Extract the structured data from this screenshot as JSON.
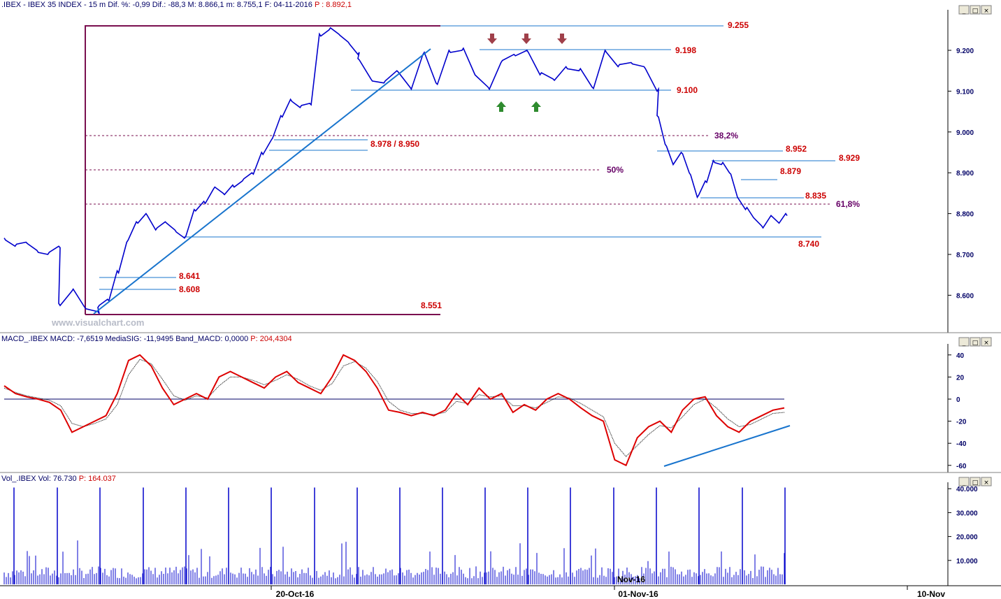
{
  "header": {
    "price_text": ".IBEX - IBEX 35 INDEX - 15 m Dif. %: -0,99 Dif.: -88,3 M: 8.866,1 m: 8.755,1 F: 04-11-2016",
    "price_last": "P : 8.892,1",
    "macd_text": "MACD_.IBEX MACD: -7,6519 MediaSIG: -11,9495 Band_MACD: 0,0000",
    "macd_last": "P: 204,4304",
    "vol_text": "Vol_.IBEX Vol: 76.730",
    "vol_last": "P: 164.037"
  },
  "watermark": "www.visualchart.com",
  "colors": {
    "price_series": "#0000cc",
    "level_line": "#1874cd",
    "level_label": "#cc0000",
    "fib_line": "#7a0f4f",
    "fib_label": "#660066",
    "macd_line": "#dd0000",
    "signal_line": "#000000",
    "volume": "#0000cc",
    "arrow_down": "#a0404a",
    "arrow_up": "#2e8b2e"
  },
  "chart_data": [
    {
      "type": "line",
      "title": "IBEX 35 INDEX 15 m",
      "ylim": [
        8.5,
        9.3
      ],
      "y_ticks": [
        "9.200",
        "9.100",
        "9.000",
        "8.900",
        "8.800",
        "8.700",
        "8.600"
      ],
      "x_ticks": [
        "20-Oct-16",
        "01-Nov-16",
        "10-Nov",
        "Nov-16"
      ],
      "series": [
        {
          "values": [
            8.74,
            8.72,
            8.73,
            8.71,
            8.7,
            8.72,
            8.58,
            8.61,
            8.57,
            8.56,
            8.57,
            8.59,
            8.66,
            8.73,
            8.78,
            8.8,
            8.76,
            8.78,
            8.76,
            8.74,
            8.81,
            8.83,
            8.86,
            8.85,
            8.87,
            8.88,
            8.9,
            8.95,
            8.98,
            9.04,
            9.08,
            9.06,
            9.07,
            9.24,
            9.25,
            9.24,
            9.22,
            9.19,
            9.18,
            9.13,
            9.12,
            9.15,
            9.11,
            9.19,
            9.12,
            9.2,
            9.2,
            9.14,
            9.11,
            9.17,
            9.19,
            9.2,
            9.14,
            9.13,
            9.16,
            9.15,
            9.11,
            9.2,
            9.16,
            9.17,
            9.16,
            9.1,
            9.04,
            8.97,
            8.92,
            8.95,
            8.9,
            8.84,
            8.88,
            8.93,
            8.92,
            8.9,
            8.84,
            8.81,
            8.79,
            8.77,
            8.79,
            8.78,
            8.8
          ]
        }
      ],
      "levels": [
        "9.255",
        "9.198",
        "9.100",
        "8.978 / 8.950",
        "8.952",
        "8.929",
        "8.879",
        "8.835",
        "8.740",
        "8.641",
        "8.608",
        "8.551"
      ],
      "fib_levels": [
        "38,2%",
        "50%",
        "61,8%"
      ],
      "annotations": [
        "down arrows at 9.198 resistance",
        "up arrows at 9.100 support",
        "rising trendline from 8.551 low"
      ]
    },
    {
      "type": "line",
      "title": "MACD_.IBEX",
      "ylim": [
        -65,
        45
      ],
      "y_ticks": [
        "40",
        "20",
        "0",
        "-20",
        "-40",
        "-60"
      ],
      "series": [
        {
          "name": "MACD",
          "values": [
            12,
            5,
            2,
            0,
            -3,
            -10,
            -30,
            -25,
            -20,
            -15,
            5,
            35,
            40,
            30,
            10,
            -5,
            0,
            5,
            0,
            20,
            25,
            20,
            15,
            10,
            20,
            25,
            15,
            10,
            5,
            20,
            40,
            35,
            25,
            10,
            -10,
            -12,
            -15,
            -12,
            -15,
            -10,
            5,
            -5,
            10,
            0,
            5,
            -12,
            -5,
            -10,
            0,
            5,
            0,
            -8,
            -15,
            -20,
            -55,
            -60,
            -35,
            -25,
            -20,
            -30,
            -10,
            0,
            2,
            -15,
            -25,
            -30,
            -20,
            -15,
            -10,
            -8
          ]
        },
        {
          "name": "MediaSIG",
          "values": [
            10,
            6,
            3,
            1,
            -1,
            -6,
            -22,
            -25,
            -22,
            -18,
            -5,
            22,
            36,
            32,
            18,
            3,
            -1,
            3,
            1,
            12,
            20,
            20,
            17,
            13,
            17,
            22,
            18,
            12,
            8,
            14,
            30,
            34,
            28,
            16,
            -2,
            -10,
            -13,
            -13,
            -14,
            -12,
            -2,
            -4,
            4,
            2,
            3,
            -6,
            -6,
            -8,
            -3,
            2,
            1,
            -4,
            -10,
            -16,
            -40,
            -52,
            -42,
            -32,
            -24,
            -26,
            -16,
            -5,
            0,
            -8,
            -18,
            -25,
            -23,
            -18,
            -13,
            -12
          ]
        }
      ]
    },
    {
      "type": "bar",
      "title": "Vol_.IBEX",
      "ylim": [
        0,
        42000
      ],
      "y_ticks": [
        "40.000",
        "30.000",
        "20.000",
        "10.000"
      ]
    }
  ]
}
